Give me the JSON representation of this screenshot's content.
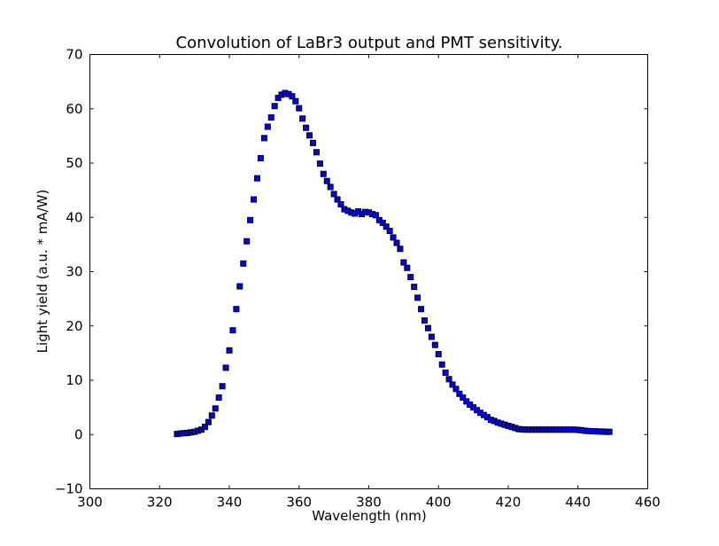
{
  "chart_data": {
    "type": "scatter",
    "title": "Convolution of LaBr3 output and PMT sensitivity.",
    "xlabel": "Wavelength (nm)",
    "ylabel": "Light yield (a.u. * mA/W)",
    "xlim": [
      300,
      460
    ],
    "ylim": [
      -10,
      70
    ],
    "xticks": [
      300,
      320,
      340,
      360,
      380,
      400,
      420,
      440,
      460
    ],
    "yticks": [
      -10,
      0,
      10,
      20,
      30,
      40,
      50,
      60,
      70
    ],
    "xtick_labels": [
      "300",
      "320",
      "340",
      "360",
      "380",
      "400",
      "420",
      "440",
      "460"
    ],
    "ytick_labels": [
      "−10",
      "0",
      "10",
      "20",
      "30",
      "40",
      "50",
      "60",
      "70"
    ],
    "grid": false,
    "marker_color": "#0000ff",
    "marker_edge": "#000000",
    "x_start": 325,
    "x_step": 1,
    "values": [
      0.1,
      0.2,
      0.25,
      0.3,
      0.4,
      0.5,
      0.7,
      0.9,
      1.4,
      2.3,
      3.5,
      4.8,
      6.8,
      8.9,
      12.3,
      15.5,
      19.2,
      23.1,
      27.3,
      31.5,
      35.6,
      39.5,
      43.3,
      47.2,
      50.9,
      54.6,
      56.7,
      58.4,
      60.5,
      62.0,
      62.6,
      62.9,
      62.7,
      62.3,
      61.4,
      60.1,
      58.2,
      56.5,
      55.1,
      53.7,
      52.0,
      49.9,
      48.0,
      46.7,
      45.6,
      44.3,
      43.3,
      42.4,
      41.5,
      41.2,
      40.9,
      40.7,
      41.1,
      40.6,
      41.0,
      40.9,
      40.6,
      40.4,
      39.5,
      39.0,
      38.3,
      37.5,
      36.3,
      35.3,
      34.2,
      31.7,
      30.7,
      29.0,
      27.2,
      25.2,
      23.1,
      21.0,
      19.6,
      18.0,
      16.5,
      14.8,
      12.9,
      11.4,
      10.2,
      9.2,
      8.4,
      7.5,
      6.8,
      6.1,
      5.5,
      5.0,
      4.5,
      4.0,
      3.6,
      3.2,
      2.7,
      2.5,
      2.2,
      2.0,
      1.8,
      1.6,
      1.4,
      1.2,
      1.0,
      0.95,
      0.9,
      0.9,
      0.9,
      0.9,
      0.9,
      0.9,
      0.9,
      0.9,
      0.9,
      0.9,
      0.9,
      0.9,
      0.9,
      0.9,
      0.9,
      0.85,
      0.8,
      0.7,
      0.65,
      0.6,
      0.6,
      0.55,
      0.55,
      0.5,
      0.5
    ]
  }
}
